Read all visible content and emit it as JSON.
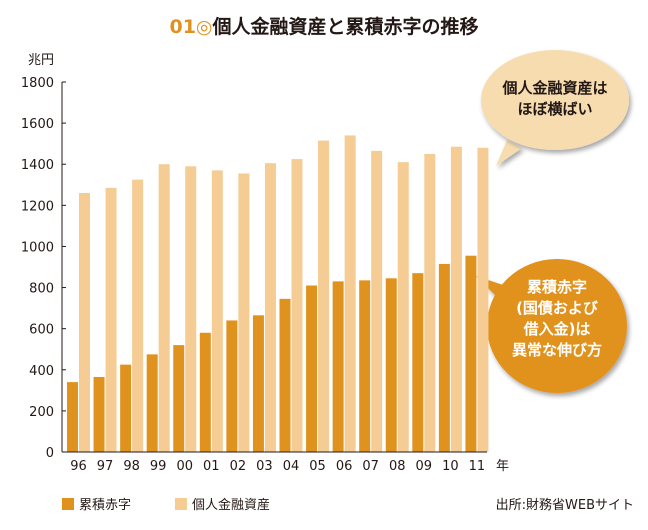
{
  "title": {
    "number": "01",
    "mark": "◎",
    "text": "個人金融資産と累積赤字の推移"
  },
  "source": "出所:財務省WEBサイト",
  "callouts": {
    "assets": [
      "個人金融資産は",
      "ほぼ横ばい"
    ],
    "deficit": [
      "累積赤字",
      "(国債および",
      "借入金)は",
      "異常な伸び方"
    ]
  },
  "colors": {
    "deficit": "#e0921e",
    "assets": "#f4cc94",
    "callout1_bg": "#f7dcb0",
    "callout2_bg": "#e0921e",
    "title_accent": "#e0921e"
  },
  "chart_data": {
    "type": "bar",
    "ylabel": "兆円",
    "xlabel": "年",
    "ylim": [
      0,
      1800
    ],
    "yticks": [
      0,
      200,
      400,
      600,
      800,
      1000,
      1200,
      1400,
      1600,
      1800
    ],
    "grid": false,
    "legend_position": "bottom",
    "categories": [
      "96",
      "97",
      "98",
      "99",
      "00",
      "01",
      "02",
      "03",
      "04",
      "05",
      "06",
      "07",
      "08",
      "09",
      "10",
      "11"
    ],
    "series": [
      {
        "name": "累積赤字",
        "values": [
          340,
          365,
          425,
          475,
          520,
          580,
          640,
          665,
          745,
          810,
          830,
          835,
          845,
          870,
          915,
          955
        ]
      },
      {
        "name": "個人金融資産",
        "values": [
          1260,
          1285,
          1325,
          1400,
          1390,
          1370,
          1355,
          1405,
          1425,
          1515,
          1540,
          1465,
          1410,
          1450,
          1485,
          1480
        ]
      }
    ]
  }
}
